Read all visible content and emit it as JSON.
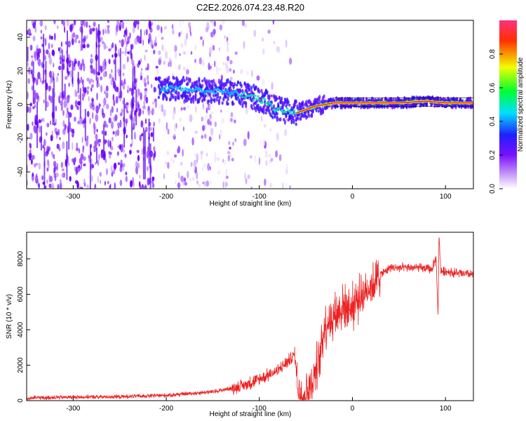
{
  "title": "C2E2.2026.074.23.48.R20",
  "chart_data": [
    {
      "type": "heatmap",
      "xlabel": "Height of straight line (km)",
      "ylabel": "Frequency (Hz)",
      "xlim": [
        -350,
        130
      ],
      "ylim": [
        -50,
        50
      ],
      "xticks": [
        -300,
        -200,
        -100,
        0,
        100
      ],
      "yticks": [
        -40,
        -20,
        0,
        20,
        40
      ],
      "colorbar": {
        "label": "Normalized spectral amplitude",
        "range": [
          0,
          1
        ],
        "ticks": [
          "0.0",
          "0.2",
          "0.4",
          "0.6",
          "0.8"
        ],
        "tick_values": [
          0.0,
          0.2,
          0.4,
          0.6,
          0.8
        ],
        "stops": [
          "#ffffff",
          "#d8b8f8",
          "#7a10ff",
          "#2020ff",
          "#00e0ff",
          "#00ff30",
          "#f0ff00",
          "#ff3000",
          "#ff3080"
        ]
      },
      "signal_track": {
        "x": [
          -205,
          -180,
          -150,
          -130,
          -110,
          -95,
          -85,
          -70,
          -60,
          -50,
          -40,
          -30,
          -20,
          0,
          50,
          80,
          100,
          130
        ],
        "y": [
          10,
          9,
          8,
          7,
          5,
          2,
          -2,
          -4,
          -5,
          -3,
          -1,
          0,
          1,
          1,
          1,
          2,
          1,
          1
        ]
      }
    },
    {
      "type": "line",
      "xlabel": "Height of straight line (km)",
      "ylabel": "SNR (10 * v/v)",
      "xlim": [
        -350,
        130
      ],
      "ylim": [
        0,
        9500
      ],
      "xticks": [
        -300,
        -200,
        -100,
        0,
        100
      ],
      "yticks": [
        0,
        2000,
        4000,
        6000,
        8000
      ],
      "series": [
        {
          "name": "SNR",
          "color": "#ee2222",
          "x": [
            -350,
            -300,
            -250,
            -200,
            -150,
            -120,
            -100,
            -80,
            -70,
            -62,
            -58,
            -52,
            -45,
            -35,
            -30,
            -20,
            -10,
            0,
            10,
            20,
            30,
            40,
            50,
            70,
            85,
            90,
            92,
            93,
            95,
            100,
            110,
            130
          ],
          "y": [
            150,
            200,
            220,
            300,
            500,
            800,
            1200,
            1700,
            2200,
            2600,
            500,
            350,
            800,
            2500,
            4200,
            4800,
            5300,
            5300,
            6000,
            6500,
            7100,
            7500,
            7500,
            7500,
            7400,
            8000,
            4700,
            9300,
            7300,
            7300,
            7200,
            7100
          ]
        }
      ]
    }
  ]
}
